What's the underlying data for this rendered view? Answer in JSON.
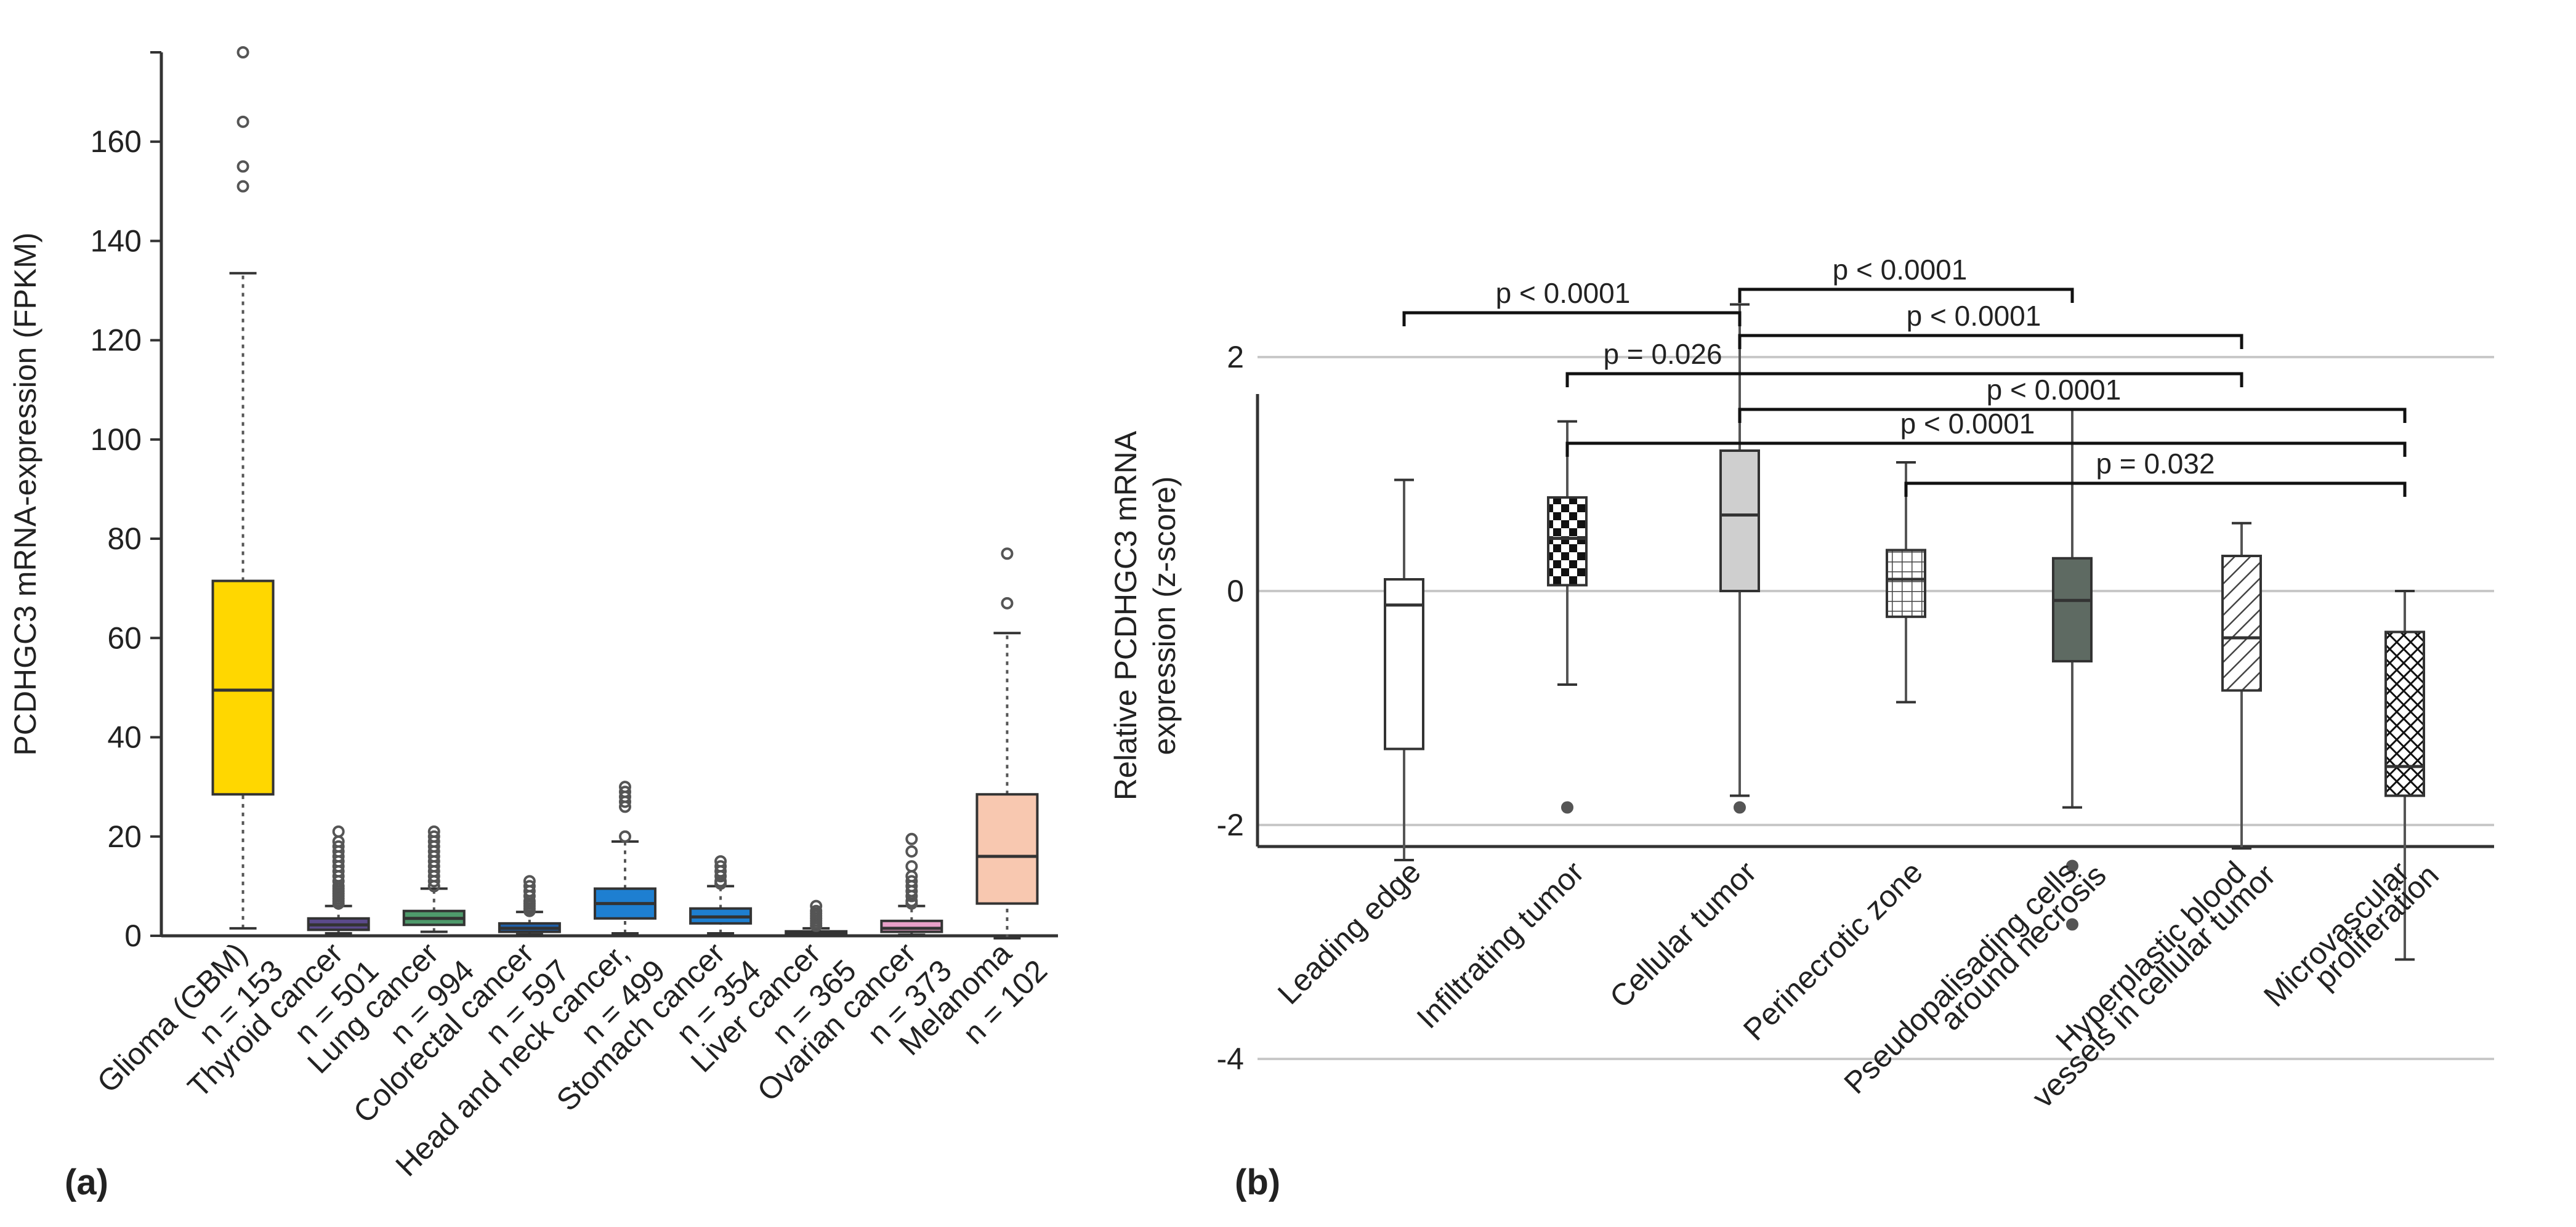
{
  "panels": {
    "a": "(a)",
    "b": "(b)"
  },
  "chart_data": [
    {
      "id": "a",
      "type": "box",
      "title": "",
      "xlabel": "",
      "ylabel": "PCDHGC3 mRNA-expression (FPKM)",
      "ylim": [
        0,
        178
      ],
      "yticks": [
        0,
        20,
        40,
        60,
        80,
        100,
        120,
        140,
        160
      ],
      "grid": false,
      "series": [
        {
          "name": "Glioma (GBM)",
          "n_label": "n = 153",
          "color": "#FFD700",
          "whisker_low": 1.5,
          "q1": 28.5,
          "median": 49.5,
          "q3": 71.5,
          "whisker_high": 133.5,
          "outliers": [
            151,
            155,
            164,
            178
          ]
        },
        {
          "name": "Thyroid cancer",
          "n_label": "n = 501",
          "color": "#5B4A8B",
          "whisker_low": 0.5,
          "q1": 1.2,
          "median": 2.2,
          "q3": 3.5,
          "whisker_high": 6.0,
          "outliers": [
            6.5,
            7,
            7.5,
            8,
            8.5,
            9,
            9.5,
            10,
            11,
            12,
            13,
            14,
            15,
            16,
            17,
            18,
            19,
            21
          ]
        },
        {
          "name": "Lung cancer",
          "n_label": "n = 994",
          "color": "#4E9A6B",
          "whisker_low": 0.8,
          "q1": 2.2,
          "median": 3.5,
          "q3": 5.0,
          "whisker_high": 9.5,
          "outliers": [
            10,
            11,
            12,
            13,
            14,
            15,
            16,
            17,
            18,
            19,
            20,
            21
          ]
        },
        {
          "name": "Colorectal cancer",
          "n_label": "n = 597",
          "color": "#1F5FA8",
          "whisker_low": 0.3,
          "q1": 0.8,
          "median": 1.5,
          "q3": 2.5,
          "whisker_high": 4.8,
          "outliers": [
            5,
            5.5,
            6,
            6.5,
            7,
            8,
            9,
            10,
            11
          ]
        },
        {
          "name": "Head and neck cancer,",
          "n_label": "n = 499",
          "color": "#1E7FD1",
          "whisker_low": 0.5,
          "q1": 3.5,
          "median": 6.5,
          "q3": 9.5,
          "whisker_high": 19.0,
          "outliers": [
            20,
            26,
            27,
            28,
            29,
            30
          ]
        },
        {
          "name": "Stomach cancer",
          "n_label": "n = 354",
          "color": "#1E7FD1",
          "whisker_low": 0.5,
          "q1": 2.5,
          "median": 3.8,
          "q3": 5.5,
          "whisker_high": 10.0,
          "outliers": [
            10.5,
            11,
            12,
            13,
            14,
            15
          ]
        },
        {
          "name": "Liver cancer",
          "n_label": "n = 365",
          "color": "#3C3C78",
          "whisker_low": 0.1,
          "q1": 0.3,
          "median": 0.5,
          "q3": 0.9,
          "whisker_high": 1.5,
          "outliers": [
            2,
            2.5,
            3,
            3.5,
            4,
            4.5,
            5,
            6
          ]
        },
        {
          "name": "Ovarian cancer",
          "n_label": "n = 373",
          "color": "#E8A0C8",
          "whisker_low": 0.2,
          "q1": 0.8,
          "median": 1.5,
          "q3": 3.0,
          "whisker_high": 6.0,
          "outliers": [
            6.5,
            7,
            8,
            9,
            10,
            11,
            12,
            14,
            17,
            19.5
          ]
        },
        {
          "name": "Melanoma",
          "n_label": "n = 102",
          "color": "#F8C8B0",
          "whisker_low": -0.5,
          "q1": 6.5,
          "median": 16.0,
          "q3": 28.5,
          "whisker_high": 61.0,
          "outliers": [
            67,
            77
          ]
        }
      ]
    },
    {
      "id": "b",
      "type": "box",
      "title": "",
      "xlabel": "",
      "ylabel": [
        "Relative PCDHGC3 mRNA",
        "expression (z-score)"
      ],
      "ylim": [
        -4.4,
        3.4
      ],
      "yticks": [
        -4,
        -2,
        0,
        2
      ],
      "ytick_labels": [
        "-4",
        "-2",
        "0",
        "2"
      ],
      "grid": true,
      "series": [
        {
          "name": [
            "Leading edge"
          ],
          "pattern": "white",
          "whisker_low": -2.3,
          "q1": -1.35,
          "median": -0.12,
          "q3": 0.1,
          "whisker_high": 0.95,
          "outliers": []
        },
        {
          "name": [
            "Infiltrating tumor"
          ],
          "pattern": "checker",
          "whisker_low": -0.8,
          "q1": 0.05,
          "median": 0.45,
          "q3": 0.8,
          "whisker_high": 1.45,
          "outliers": [
            -1.85
          ]
        },
        {
          "name": [
            "Cellular tumor"
          ],
          "pattern": "lightgray",
          "whisker_low": -1.75,
          "q1": 0.0,
          "median": 0.65,
          "q3": 1.2,
          "whisker_high": 2.45,
          "outliers": [
            -1.85
          ]
        },
        {
          "name": [
            "Perinecrotic zone"
          ],
          "pattern": "grid",
          "whisker_low": -0.95,
          "q1": -0.22,
          "median": 0.1,
          "q3": 0.35,
          "whisker_high": 1.1,
          "outliers": []
        },
        {
          "name": [
            "Pseudopalisading cells",
            "around necrosis"
          ],
          "pattern": "darkgray",
          "whisker_low": -1.85,
          "q1": -0.6,
          "median": -0.08,
          "q3": 0.28,
          "whisker_high": 1.55,
          "outliers": [
            -2.35,
            -2.85
          ]
        },
        {
          "name": [
            "Hyperplastic blood",
            "vessels in cellular tumor"
          ],
          "pattern": "hatch",
          "whisker_low": -2.2,
          "q1": -0.85,
          "median": -0.4,
          "q3": 0.3,
          "whisker_high": 0.58,
          "outliers": []
        },
        {
          "name": [
            "Microvascular",
            "proliferation"
          ],
          "pattern": "crosshatch",
          "whisker_low": -3.15,
          "q1": -1.75,
          "median": -1.5,
          "q3": -0.35,
          "whisker_high": 0.0,
          "outliers": []
        }
      ],
      "annotations": [
        {
          "from": 0,
          "to": 2,
          "label": "p < 0.0001"
        },
        {
          "from": 2,
          "to": 4,
          "label": "p < 0.0001"
        },
        {
          "from": 2,
          "to": 5,
          "label": "p < 0.0001"
        },
        {
          "from": 1,
          "to": 5,
          "label": "p = 0.026"
        },
        {
          "from": 2,
          "to": 6,
          "label": "p < 0.0001"
        },
        {
          "from": 1,
          "to": 6,
          "label": "p < 0.0001"
        },
        {
          "from": 3,
          "to": 6,
          "label": "p = 0.032"
        }
      ]
    }
  ]
}
